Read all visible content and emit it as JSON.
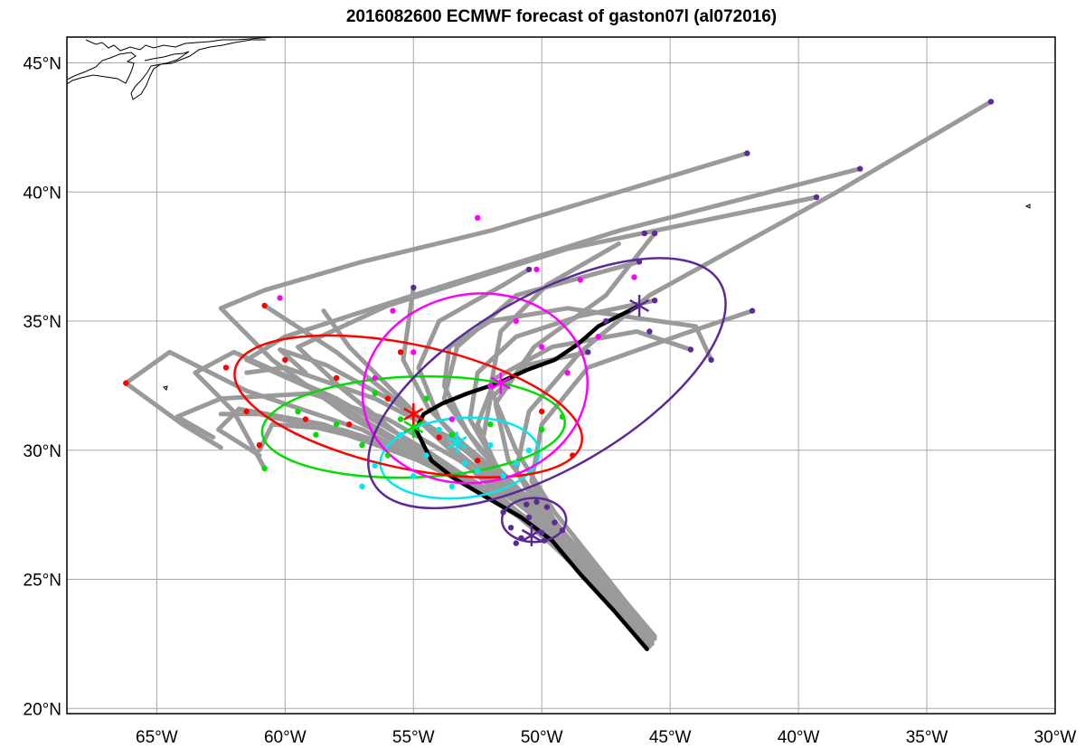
{
  "title": "2016082600 ECMWF forecast of gaston07l (al072016)",
  "map": {
    "lon_range": [
      -68.5,
      -30
    ],
    "lat_range": [
      19.8,
      46
    ],
    "grid": true,
    "lon_ticks": [
      {
        "value": -65,
        "label": "65°W"
      },
      {
        "value": -60,
        "label": "60°W"
      },
      {
        "value": -55,
        "label": "55°W"
      },
      {
        "value": -50,
        "label": "50°W"
      },
      {
        "value": -45,
        "label": "45°W"
      },
      {
        "value": -40,
        "label": "40°W"
      },
      {
        "value": -35,
        "label": "35°W"
      },
      {
        "value": -30,
        "label": "30°W"
      }
    ],
    "lat_ticks": [
      {
        "value": 45,
        "label": "45°N"
      },
      {
        "value": 40,
        "label": "40°N"
      },
      {
        "value": 35,
        "label": "35°N"
      },
      {
        "value": 30,
        "label": "30°N"
      },
      {
        "value": 25,
        "label": "25°N"
      },
      {
        "value": 20,
        "label": "20°N"
      }
    ]
  },
  "colors": {
    "ensemble_track": "#9a9a9a",
    "deterministic_track": "#000000",
    "coast": "#000000",
    "grid": "#a8a8a8",
    "day1": "#5b2a96",
    "day2": "#00e8f0",
    "day3": "#00dd00",
    "day4": "#ff0000",
    "day5": "#ff00ff",
    "day6": "#5b2a96"
  },
  "chart_data": {
    "type": "map-tracks",
    "deterministic_track": [
      [
        -45.9,
        22.3
      ],
      [
        -47.2,
        23.8
      ],
      [
        -48.5,
        25.2
      ],
      [
        -49.6,
        26.5
      ],
      [
        -50.8,
        27.4
      ],
      [
        -52.2,
        28.2
      ],
      [
        -53.4,
        28.9
      ],
      [
        -54.3,
        29.6
      ],
      [
        -54.6,
        30.2
      ],
      [
        -54.9,
        30.8
      ],
      [
        -54.6,
        31.4
      ],
      [
        -53.9,
        31.8
      ],
      [
        -52.9,
        32.2
      ],
      [
        -51.7,
        32.6
      ],
      [
        -50.6,
        33.1
      ],
      [
        -49.5,
        33.5
      ],
      [
        -48.6,
        34.1
      ],
      [
        -47.8,
        34.8
      ],
      [
        -46.2,
        35.6
      ]
    ],
    "ensemble_tracks": [
      [
        [
          -45.7,
          22.7
        ],
        [
          -48.0,
          25.0
        ],
        [
          -50.5,
          27.2
        ],
        [
          -53.5,
          29.0
        ],
        [
          -57.0,
          30.8
        ],
        [
          -61.5,
          32.3
        ],
        [
          -64.5,
          33.8
        ],
        [
          -66.2,
          32.6
        ],
        [
          -64.0,
          31.0
        ],
        [
          -62.5,
          30.1
        ]
      ],
      [
        [
          -45.8,
          22.6
        ],
        [
          -48.2,
          25.2
        ],
        [
          -51.0,
          27.5
        ],
        [
          -54.0,
          29.4
        ],
        [
          -57.5,
          31.3
        ],
        [
          -60.5,
          33.5
        ],
        [
          -62.5,
          35.5
        ],
        [
          -60.8,
          36.2
        ],
        [
          -57.0,
          37.3
        ],
        [
          -52.0,
          38.5
        ],
        [
          -42.0,
          41.5
        ]
      ],
      [
        [
          -45.9,
          22.5
        ],
        [
          -48.1,
          25.1
        ],
        [
          -50.6,
          27.3
        ],
        [
          -53.0,
          29.5
        ],
        [
          -55.5,
          31.8
        ],
        [
          -58.0,
          33.8
        ],
        [
          -60.8,
          35.6
        ]
      ],
      [
        [
          -45.6,
          22.8
        ],
        [
          -48.3,
          25.4
        ],
        [
          -51.2,
          27.8
        ],
        [
          -54.5,
          30.0
        ],
        [
          -58.0,
          32.0
        ],
        [
          -62.0,
          33.8
        ],
        [
          -63.5,
          33.0
        ],
        [
          -62.0,
          31.5
        ],
        [
          -60.8,
          29.3
        ]
      ],
      [
        [
          -45.9,
          22.6
        ],
        [
          -47.8,
          24.8
        ],
        [
          -50.0,
          27.0
        ],
        [
          -52.8,
          28.8
        ],
        [
          -55.8,
          30.5
        ],
        [
          -59.0,
          32.4
        ],
        [
          -61.5,
          33.5
        ],
        [
          -60.0,
          34.4
        ],
        [
          -55.0,
          36.0
        ],
        [
          -47.0,
          38.5
        ],
        [
          -37.6,
          40.9
        ]
      ],
      [
        [
          -45.8,
          22.7
        ],
        [
          -48.4,
          25.6
        ],
        [
          -51.5,
          28.0
        ],
        [
          -54.8,
          29.6
        ],
        [
          -58.5,
          31.0
        ],
        [
          -61.8,
          31.6
        ],
        [
          -62.6,
          30.8
        ],
        [
          -61.0,
          29.8
        ]
      ],
      [
        [
          -45.7,
          22.9
        ],
        [
          -48.6,
          25.8
        ],
        [
          -51.8,
          28.3
        ],
        [
          -55.2,
          30.3
        ],
        [
          -57.8,
          32.4
        ],
        [
          -59.5,
          34.0
        ],
        [
          -56.0,
          35.6
        ],
        [
          -49.0,
          37.8
        ],
        [
          -39.3,
          39.8
        ]
      ],
      [
        [
          -45.8,
          22.8
        ],
        [
          -48.0,
          25.3
        ],
        [
          -50.3,
          27.6
        ],
        [
          -52.6,
          29.8
        ],
        [
          -54.4,
          31.6
        ],
        [
          -55.4,
          33.5
        ],
        [
          -55.0,
          36.3
        ]
      ],
      [
        [
          -45.9,
          22.4
        ],
        [
          -47.9,
          24.9
        ],
        [
          -49.8,
          27.2
        ],
        [
          -51.0,
          29.2
        ],
        [
          -50.5,
          31.5
        ],
        [
          -48.5,
          33.8
        ],
        [
          -45.8,
          36.0
        ],
        [
          -38.5,
          40.0
        ],
        [
          -32.5,
          43.5
        ]
      ],
      [
        [
          -45.8,
          22.5
        ],
        [
          -47.6,
          24.7
        ],
        [
          -49.3,
          26.9
        ],
        [
          -50.4,
          28.8
        ],
        [
          -50.0,
          31.0
        ],
        [
          -48.2,
          33.2
        ],
        [
          -44.5,
          34.5
        ],
        [
          -41.8,
          35.4
        ]
      ],
      [
        [
          -45.7,
          22.6
        ],
        [
          -47.7,
          25.0
        ],
        [
          -49.6,
          27.4
        ],
        [
          -51.3,
          29.6
        ],
        [
          -51.8,
          31.8
        ],
        [
          -50.3,
          34.0
        ],
        [
          -47.5,
          36.0
        ],
        [
          -45.6,
          38.4
        ]
      ],
      [
        [
          -45.9,
          22.3
        ],
        [
          -48.2,
          25.0
        ],
        [
          -50.8,
          27.5
        ],
        [
          -53.8,
          29.3
        ],
        [
          -57.6,
          30.6
        ],
        [
          -61.0,
          31.4
        ],
        [
          -62.5,
          31.4
        ]
      ],
      [
        [
          -45.8,
          22.6
        ],
        [
          -47.9,
          25.2
        ],
        [
          -50.2,
          27.8
        ],
        [
          -52.4,
          30.0
        ],
        [
          -53.8,
          32.0
        ],
        [
          -53.3,
          34.0
        ],
        [
          -51.0,
          36.0
        ],
        [
          -46.2,
          37.3
        ]
      ],
      [
        [
          -45.6,
          22.7
        ],
        [
          -47.5,
          25.1
        ],
        [
          -49.5,
          27.6
        ],
        [
          -51.0,
          30.0
        ],
        [
          -52.0,
          32.4
        ],
        [
          -51.6,
          34.6
        ],
        [
          -49.8,
          36.4
        ],
        [
          -47.0,
          38.0
        ]
      ],
      [
        [
          -45.8,
          22.5
        ],
        [
          -47.7,
          24.9
        ],
        [
          -49.9,
          27.1
        ],
        [
          -52.0,
          28.9
        ],
        [
          -54.0,
          30.5
        ],
        [
          -55.8,
          32.3
        ],
        [
          -57.5,
          34.0
        ],
        [
          -58.5,
          35.4
        ]
      ],
      [
        [
          -45.7,
          22.7
        ],
        [
          -47.8,
          25.1
        ],
        [
          -49.9,
          27.3
        ],
        [
          -51.7,
          29.3
        ],
        [
          -52.8,
          31.2
        ],
        [
          -52.5,
          33.0
        ],
        [
          -51.0,
          34.4
        ],
        [
          -48.5,
          35.2
        ],
        [
          -45.6,
          35.8
        ]
      ],
      [
        [
          -45.9,
          22.6
        ],
        [
          -48.1,
          25.3
        ],
        [
          -50.5,
          27.6
        ],
        [
          -53.2,
          29.6
        ],
        [
          -56.0,
          31.2
        ],
        [
          -59.0,
          32.2
        ],
        [
          -62.5,
          32.0
        ],
        [
          -64.2,
          31.3
        ],
        [
          -62.8,
          30.5
        ]
      ],
      [
        [
          -45.8,
          22.4
        ],
        [
          -47.9,
          24.8
        ],
        [
          -50.2,
          26.9
        ],
        [
          -52.5,
          28.6
        ],
        [
          -55.0,
          29.9
        ],
        [
          -57.8,
          30.8
        ],
        [
          -60.5,
          31.0
        ],
        [
          -61.0,
          30.0
        ]
      ],
      [
        [
          -45.7,
          22.5
        ],
        [
          -47.6,
          24.9
        ],
        [
          -49.6,
          27.0
        ],
        [
          -51.4,
          28.9
        ],
        [
          -52.9,
          30.7
        ],
        [
          -53.8,
          32.5
        ],
        [
          -53.6,
          34.0
        ],
        [
          -52.0,
          35.0
        ],
        [
          -49.0,
          35.5
        ],
        [
          -44.0,
          34.8
        ],
        [
          -43.4,
          33.5
        ]
      ],
      [
        [
          -45.9,
          22.7
        ],
        [
          -48.0,
          25.4
        ],
        [
          -50.4,
          27.9
        ],
        [
          -53.0,
          30.0
        ],
        [
          -55.8,
          31.9
        ],
        [
          -58.4,
          33.3
        ],
        [
          -60.2,
          33.9
        ],
        [
          -59.2,
          33.0
        ]
      ],
      [
        [
          -45.8,
          22.6
        ],
        [
          -47.7,
          24.8
        ],
        [
          -49.8,
          27.0
        ],
        [
          -51.6,
          29.0
        ],
        [
          -52.5,
          31.0
        ],
        [
          -51.8,
          32.8
        ],
        [
          -49.6,
          34.0
        ],
        [
          -46.3,
          34.6
        ],
        [
          -44.2,
          33.9
        ]
      ],
      [
        [
          -45.6,
          22.8
        ],
        [
          -47.9,
          25.5
        ],
        [
          -50.3,
          28.0
        ],
        [
          -53.0,
          30.2
        ],
        [
          -56.5,
          32.0
        ],
        [
          -60.0,
          33.2
        ],
        [
          -61.5,
          33.0
        ]
      ],
      [
        [
          -45.9,
          22.5
        ],
        [
          -47.8,
          24.7
        ],
        [
          -49.8,
          26.8
        ],
        [
          -51.4,
          28.7
        ],
        [
          -52.3,
          30.4
        ],
        [
          -52.0,
          32.0
        ],
        [
          -50.6,
          33.3
        ],
        [
          -48.2,
          33.8
        ]
      ],
      [
        [
          -45.8,
          22.7
        ],
        [
          -47.9,
          25.0
        ],
        [
          -50.1,
          27.2
        ],
        [
          -52.2,
          29.2
        ],
        [
          -54.0,
          31.2
        ],
        [
          -54.8,
          33.2
        ],
        [
          -54.0,
          35.0
        ],
        [
          -51.5,
          36.4
        ],
        [
          -50.5,
          37.0
        ]
      ]
    ],
    "ellipses": [
      {
        "label": "day1",
        "cx": -50.3,
        "cy": 27.3,
        "rx": 1.25,
        "ry": 0.85,
        "rot": 0
      },
      {
        "label": "day2",
        "cx": -53.2,
        "cy": 29.7,
        "rx": 3.1,
        "ry": 1.55,
        "rot": -5
      },
      {
        "label": "day3",
        "cx": -55.0,
        "cy": 30.9,
        "rx": 5.9,
        "ry": 1.95,
        "rot": -2
      },
      {
        "label": "day4",
        "cx": -55.2,
        "cy": 31.7,
        "rx": 6.9,
        "ry": 2.4,
        "rot": 12
      },
      {
        "label": "day5",
        "cx": -52.6,
        "cy": 32.4,
        "rx": 4.4,
        "ry": 3.65,
        "rot": -10
      },
      {
        "label": "day6",
        "cx": -49.8,
        "cy": 32.6,
        "rx": 7.8,
        "ry": 3.35,
        "rot": -30
      }
    ],
    "centroids": [
      {
        "label": "day1",
        "lon": -50.4,
        "lat": 26.7
      },
      {
        "label": "day2",
        "lon": -53.3,
        "lat": 30.3
      },
      {
        "label": "day3",
        "lon": -55.0,
        "lat": 30.9
      },
      {
        "label": "day4",
        "lon": -55.0,
        "lat": 31.4
      },
      {
        "label": "day5",
        "lon": -51.6,
        "lat": 32.6
      },
      {
        "label": "day6",
        "lon": -46.2,
        "lat": 35.6
      }
    ],
    "points": {
      "day1": [
        [
          -50.5,
          27.4
        ],
        [
          -49.8,
          27.8
        ],
        [
          -51.2,
          27.0
        ],
        [
          -50.0,
          26.8
        ],
        [
          -49.5,
          27.2
        ],
        [
          -50.8,
          26.6
        ],
        [
          -51.5,
          27.6
        ],
        [
          -49.2,
          26.9
        ],
        [
          -50.2,
          28.0
        ],
        [
          -51.0,
          26.4
        ],
        [
          -49.9,
          26.5
        ],
        [
          -50.6,
          27.9
        ]
      ],
      "day2": [
        [
          -53.0,
          29.5
        ],
        [
          -54.5,
          29.8
        ],
        [
          -52.0,
          30.2
        ],
        [
          -55.5,
          30.6
        ],
        [
          -51.5,
          29.0
        ],
        [
          -53.5,
          28.6
        ],
        [
          -56.5,
          29.4
        ],
        [
          -50.5,
          30.0
        ],
        [
          -54.0,
          30.8
        ],
        [
          -52.5,
          29.2
        ],
        [
          -57.0,
          28.6
        ],
        [
          -55.0,
          29.0
        ],
        [
          -51.0,
          29.5
        ]
      ],
      "day3": [
        [
          -55.5,
          31.2
        ],
        [
          -58.0,
          31.0
        ],
        [
          -53.5,
          30.6
        ],
        [
          -59.5,
          31.5
        ],
        [
          -56.5,
          32.2
        ],
        [
          -52.0,
          31.0
        ],
        [
          -60.8,
          29.3
        ],
        [
          -57.0,
          30.2
        ],
        [
          -54.5,
          32.0
        ],
        [
          -50.0,
          30.8
        ],
        [
          -58.8,
          30.6
        ],
        [
          -49.2,
          31.3
        ],
        [
          -56.0,
          29.8
        ]
      ],
      "day4": [
        [
          -56.0,
          32.0
        ],
        [
          -60.0,
          33.5
        ],
        [
          -58.0,
          32.8
        ],
        [
          -61.5,
          31.5
        ],
        [
          -54.0,
          30.5
        ],
        [
          -59.2,
          31.2
        ],
        [
          -62.3,
          33.2
        ],
        [
          -55.5,
          33.8
        ],
        [
          -57.5,
          31.0
        ],
        [
          -61.0,
          30.2
        ],
        [
          -52.5,
          29.6
        ],
        [
          -48.8,
          29.8
        ],
        [
          -50.0,
          31.5
        ],
        [
          -66.2,
          32.6
        ],
        [
          -60.8,
          35.6
        ]
      ],
      "day5": [
        [
          -52.0,
          32.5
        ],
        [
          -55.0,
          33.8
        ],
        [
          -50.0,
          34.0
        ],
        [
          -53.5,
          31.2
        ],
        [
          -49.0,
          33.0
        ],
        [
          -56.5,
          32.8
        ],
        [
          -51.0,
          35.0
        ],
        [
          -48.5,
          36.6
        ],
        [
          -55.8,
          35.4
        ],
        [
          -47.8,
          34.4
        ],
        [
          -52.5,
          39.0
        ],
        [
          -60.2,
          35.9
        ],
        [
          -50.2,
          37.0
        ],
        [
          -46.4,
          36.7
        ]
      ],
      "day6": [
        [
          -46.0,
          38.4
        ],
        [
          -45.6,
          35.8
        ],
        [
          -44.2,
          33.9
        ],
        [
          -41.8,
          35.4
        ],
        [
          -45.8,
          34.6
        ],
        [
          -48.2,
          33.8
        ],
        [
          -43.4,
          33.5
        ],
        [
          -50.5,
          37.0
        ],
        [
          -42.0,
          41.5
        ],
        [
          -37.6,
          40.9
        ],
        [
          -39.3,
          39.8
        ],
        [
          -32.5,
          43.5
        ],
        [
          -46.2,
          37.3
        ],
        [
          -45.6,
          38.4
        ],
        [
          -47.5,
          35.0
        ],
        [
          -55.0,
          36.3
        ]
      ]
    }
  }
}
